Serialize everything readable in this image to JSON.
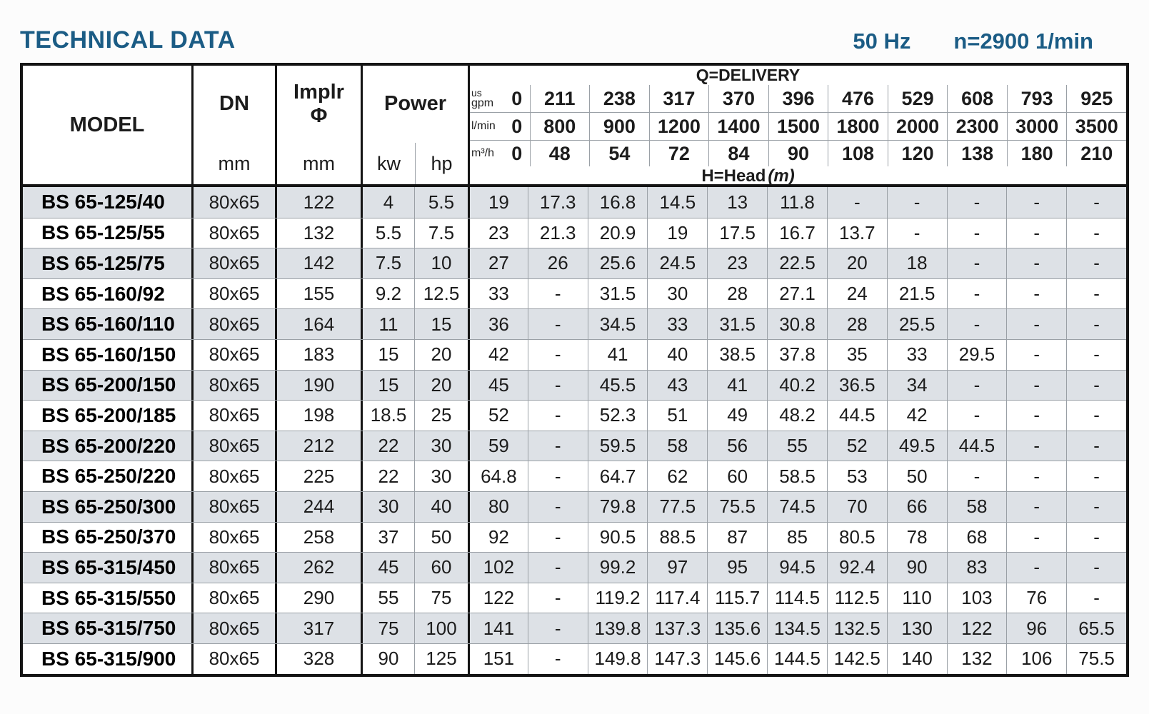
{
  "page": {
    "title": "TECHNICAL DATA",
    "frequency": "50 Hz",
    "speed": "n=2900 1/min"
  },
  "colors": {
    "accent_blue": "#1b5c85",
    "row_shade": "#dde1e6",
    "grid_thin": "#9aa0a6",
    "grid_thick": "#141414"
  },
  "table": {
    "headers": {
      "model": "MODEL",
      "dn": "DN",
      "dn_unit": "mm",
      "implr_line1": "Implr",
      "implr_symbol": "Φ",
      "implr_unit": "mm",
      "power": "Power",
      "kw": "kw",
      "hp": "hp"
    },
    "delivery": {
      "title": "Q=DELIVERY",
      "units": {
        "gpm_small": "us",
        "gpm": "gpm",
        "lmin": "l/min",
        "m3h": "m³/h"
      },
      "gpm": [
        "0",
        "211",
        "238",
        "317",
        "370",
        "396",
        "476",
        "529",
        "608",
        "793",
        "925"
      ],
      "lmin": [
        "0",
        "800",
        "900",
        "1200",
        "1400",
        "1500",
        "1800",
        "2000",
        "2300",
        "3000",
        "3500"
      ],
      "m3h": [
        "0",
        "48",
        "54",
        "72",
        "84",
        "90",
        "108",
        "120",
        "138",
        "180",
        "210"
      ],
      "head_label": "H=Head",
      "head_unit": "(m)"
    },
    "rows": [
      {
        "model": "BS 65-125/40",
        "dn": "80x65",
        "implr": "122",
        "kw": "4",
        "hp": "5.5",
        "head": [
          "19",
          "17.3",
          "16.8",
          "14.5",
          "13",
          "11.8",
          "-",
          "-",
          "-",
          "-",
          "-"
        ]
      },
      {
        "model": "BS 65-125/55",
        "dn": "80x65",
        "implr": "132",
        "kw": "5.5",
        "hp": "7.5",
        "head": [
          "23",
          "21.3",
          "20.9",
          "19",
          "17.5",
          "16.7",
          "13.7",
          "-",
          "-",
          "-",
          "-"
        ]
      },
      {
        "model": "BS 65-125/75",
        "dn": "80x65",
        "implr": "142",
        "kw": "7.5",
        "hp": "10",
        "head": [
          "27",
          "26",
          "25.6",
          "24.5",
          "23",
          "22.5",
          "20",
          "18",
          "-",
          "-",
          "-"
        ]
      },
      {
        "model": "BS 65-160/92",
        "dn": "80x65",
        "implr": "155",
        "kw": "9.2",
        "hp": "12.5",
        "head": [
          "33",
          "-",
          "31.5",
          "30",
          "28",
          "27.1",
          "24",
          "21.5",
          "-",
          "-",
          "-"
        ]
      },
      {
        "model": "BS 65-160/110",
        "dn": "80x65",
        "implr": "164",
        "kw": "11",
        "hp": "15",
        "head": [
          "36",
          "-",
          "34.5",
          "33",
          "31.5",
          "30.8",
          "28",
          "25.5",
          "-",
          "-",
          "-"
        ]
      },
      {
        "model": "BS 65-160/150",
        "dn": "80x65",
        "implr": "183",
        "kw": "15",
        "hp": "20",
        "head": [
          "42",
          "-",
          "41",
          "40",
          "38.5",
          "37.8",
          "35",
          "33",
          "29.5",
          "-",
          "-"
        ]
      },
      {
        "model": "BS 65-200/150",
        "dn": "80x65",
        "implr": "190",
        "kw": "15",
        "hp": "20",
        "head": [
          "45",
          "-",
          "45.5",
          "43",
          "41",
          "40.2",
          "36.5",
          "34",
          "-",
          "-",
          "-"
        ]
      },
      {
        "model": "BS 65-200/185",
        "dn": "80x65",
        "implr": "198",
        "kw": "18.5",
        "hp": "25",
        "head": [
          "52",
          "-",
          "52.3",
          "51",
          "49",
          "48.2",
          "44.5",
          "42",
          "-",
          "-",
          "-"
        ]
      },
      {
        "model": "BS 65-200/220",
        "dn": "80x65",
        "implr": "212",
        "kw": "22",
        "hp": "30",
        "head": [
          "59",
          "-",
          "59.5",
          "58",
          "56",
          "55",
          "52",
          "49.5",
          "44.5",
          "-",
          "-"
        ]
      },
      {
        "model": "BS 65-250/220",
        "dn": "80x65",
        "implr": "225",
        "kw": "22",
        "hp": "30",
        "head": [
          "64.8",
          "-",
          "64.7",
          "62",
          "60",
          "58.5",
          "53",
          "50",
          "-",
          "-",
          "-"
        ]
      },
      {
        "model": "BS 65-250/300",
        "dn": "80x65",
        "implr": "244",
        "kw": "30",
        "hp": "40",
        "head": [
          "80",
          "-",
          "79.8",
          "77.5",
          "75.5",
          "74.5",
          "70",
          "66",
          "58",
          "-",
          "-"
        ]
      },
      {
        "model": "BS 65-250/370",
        "dn": "80x65",
        "implr": "258",
        "kw": "37",
        "hp": "50",
        "head": [
          "92",
          "-",
          "90.5",
          "88.5",
          "87",
          "85",
          "80.5",
          "78",
          "68",
          "-",
          "-"
        ]
      },
      {
        "model": "BS 65-315/450",
        "dn": "80x65",
        "implr": "262",
        "kw": "45",
        "hp": "60",
        "head": [
          "102",
          "-",
          "99.2",
          "97",
          "95",
          "94.5",
          "92.4",
          "90",
          "83",
          "-",
          "-"
        ]
      },
      {
        "model": "BS 65-315/550",
        "dn": "80x65",
        "implr": "290",
        "kw": "55",
        "hp": "75",
        "head": [
          "122",
          "-",
          "119.2",
          "117.4",
          "115.7",
          "114.5",
          "112.5",
          "110",
          "103",
          "76",
          "-"
        ]
      },
      {
        "model": "BS 65-315/750",
        "dn": "80x65",
        "implr": "317",
        "kw": "75",
        "hp": "100",
        "head": [
          "141",
          "-",
          "139.8",
          "137.3",
          "135.6",
          "134.5",
          "132.5",
          "130",
          "122",
          "96",
          "65.5"
        ]
      },
      {
        "model": "BS 65-315/900",
        "dn": "80x65",
        "implr": "328",
        "kw": "90",
        "hp": "125",
        "head": [
          "151",
          "-",
          "149.8",
          "147.3",
          "145.6",
          "144.5",
          "142.5",
          "140",
          "132",
          "106",
          "75.5"
        ]
      }
    ]
  }
}
